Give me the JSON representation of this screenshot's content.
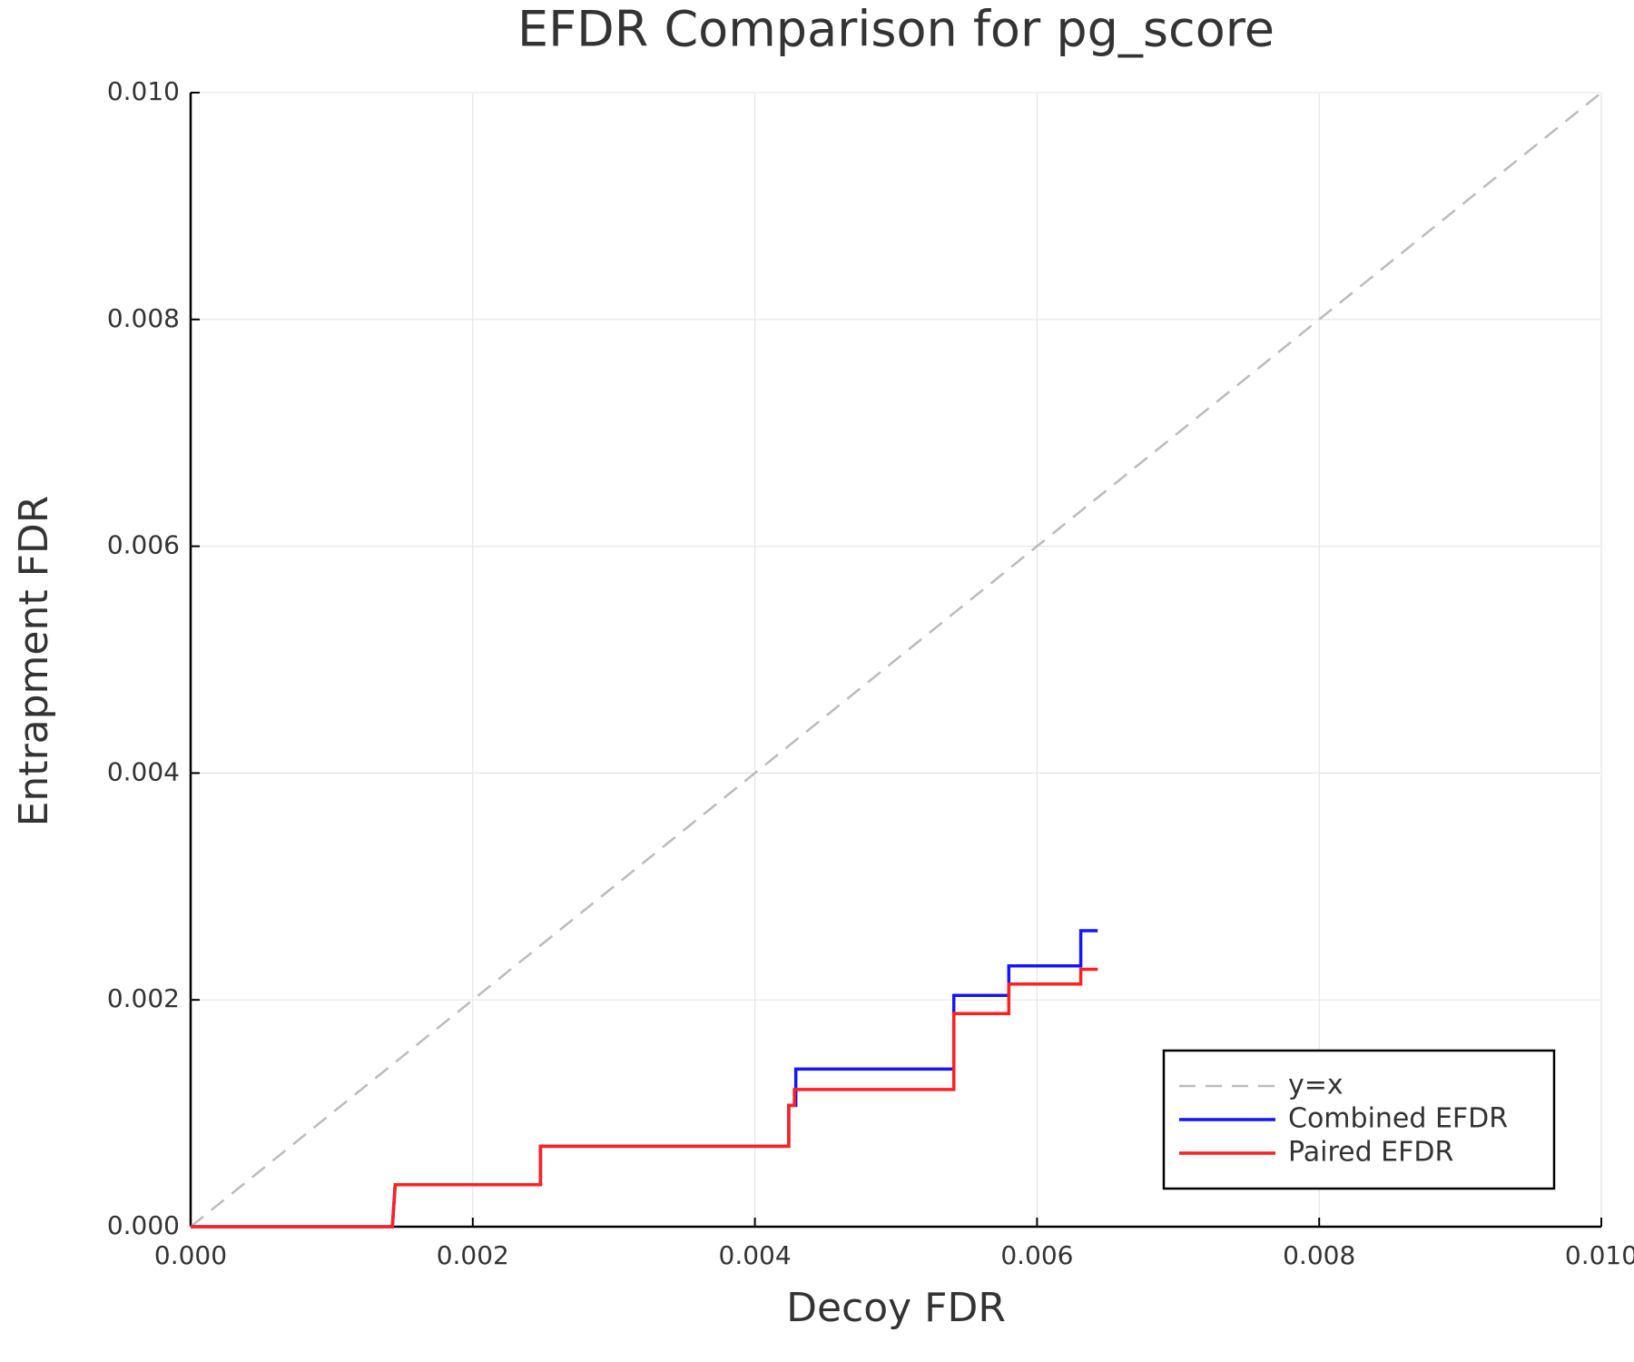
{
  "chart_data": {
    "type": "line",
    "title": "EFDR Comparison for pg_score",
    "x_label": "Decoy FDR",
    "y_label": "Entrapment FDR",
    "xlim": [
      0,
      0.01
    ],
    "ylim": [
      0,
      0.01
    ],
    "xticks": [
      {
        "value": 0,
        "label": "0.000"
      },
      {
        "value": 0.002,
        "label": "0.002"
      },
      {
        "value": 0.004,
        "label": "0.004"
      },
      {
        "value": 0.006,
        "label": "0.006"
      },
      {
        "value": 0.008,
        "label": "0.008"
      },
      {
        "value": 0.01,
        "label": "0.010"
      }
    ],
    "yticks": [
      {
        "value": 0,
        "label": "0.000"
      },
      {
        "value": 0.002,
        "label": "0.002"
      },
      {
        "value": 0.004,
        "label": "0.004"
      },
      {
        "value": 0.006,
        "label": "0.006"
      },
      {
        "value": 0.008,
        "label": "0.008"
      },
      {
        "value": 0.01,
        "label": "0.010"
      }
    ],
    "grid": true,
    "legend": "lower right",
    "series": [
      {
        "name": "y=x",
        "color": "#bbbbbb",
        "style": "dash",
        "x": [
          0,
          0.01
        ],
        "values": [
          0,
          0.01
        ]
      },
      {
        "name": "Combined EFDR",
        "color": "#1414ff",
        "style": "solid",
        "x": [
          0,
          0.00143,
          0.00145,
          0.00248,
          0.00248,
          0.00424,
          0.00424,
          0.00429,
          0.00429,
          0.00541,
          0.00541,
          0.0058,
          0.0058,
          0.00631,
          0.00631,
          0.00643
        ],
        "values": [
          0,
          0,
          0.00037,
          0.00037,
          0.00071,
          0.00071,
          0.00107,
          0.00107,
          0.00139,
          0.00139,
          0.00204,
          0.00204,
          0.0023,
          0.0023,
          0.00261,
          0.00261
        ]
      },
      {
        "name": "Paired EFDR",
        "color": "#ff1f1f",
        "style": "solid",
        "x": [
          0,
          0.00143,
          0.00145,
          0.00248,
          0.00248,
          0.00424,
          0.00424,
          0.00428,
          0.00428,
          0.00541,
          0.00541,
          0.0058,
          0.0058,
          0.00631,
          0.00631,
          0.00643
        ],
        "values": [
          0,
          0,
          0.00037,
          0.00037,
          0.00071,
          0.00071,
          0.00107,
          0.00107,
          0.00121,
          0.00121,
          0.00188,
          0.00188,
          0.00214,
          0.00214,
          0.00227,
          0.00227
        ]
      }
    ]
  }
}
